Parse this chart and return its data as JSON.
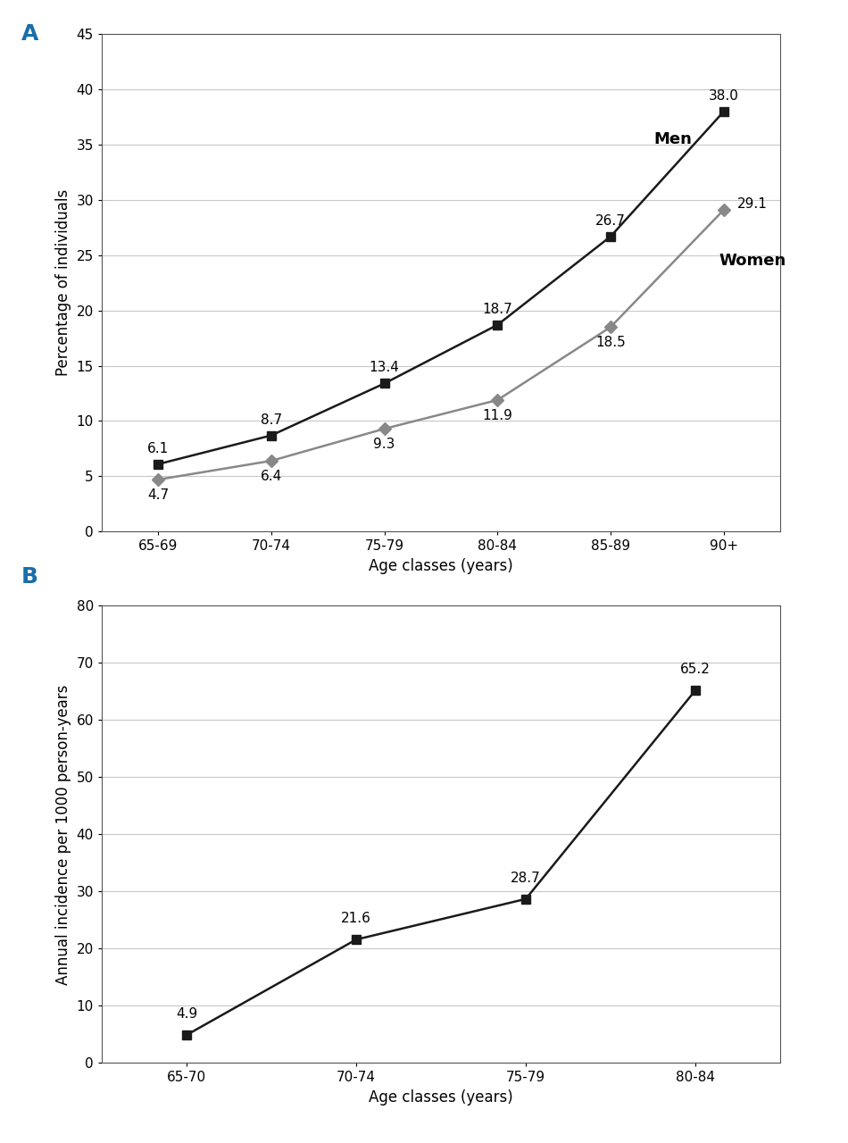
{
  "panel_A": {
    "label": "A",
    "x_categories": [
      "65-69",
      "70-74",
      "75-79",
      "80-84",
      "85-89",
      "90+"
    ],
    "men_values": [
      6.1,
      8.7,
      13.4,
      18.7,
      26.7,
      38.0
    ],
    "women_values": [
      4.7,
      6.4,
      9.3,
      11.9,
      18.5,
      29.1
    ],
    "men_color": "#1a1a1a",
    "women_color": "#888888",
    "men_marker": "s",
    "women_marker": "D",
    "men_label": "Men",
    "women_label": "Women",
    "xlabel": "Age classes (years)",
    "ylabel": "Percentage of individuals",
    "ylim": [
      0,
      45
    ],
    "yticks": [
      0,
      5,
      10,
      15,
      20,
      25,
      30,
      35,
      40,
      45
    ]
  },
  "panel_B": {
    "label": "B",
    "x_categories": [
      "65-70",
      "70-74",
      "75-79",
      "80-84"
    ],
    "values": [
      4.9,
      21.6,
      28.7,
      65.2
    ],
    "line_color": "#1a1a1a",
    "marker": "s",
    "xlabel": "Age classes (years)",
    "ylabel": "Annual incidence per 1000 person-years",
    "ylim": [
      0,
      80
    ],
    "yticks": [
      0,
      10,
      20,
      30,
      40,
      50,
      60,
      70,
      80
    ]
  },
  "figure_bg": "#ffffff",
  "axes_bg": "#ffffff",
  "grid_color": "#c8c8c8",
  "label_fontsize": 12,
  "tick_fontsize": 11,
  "annotation_fontsize": 11,
  "line_width": 1.8,
  "marker_size": 7
}
